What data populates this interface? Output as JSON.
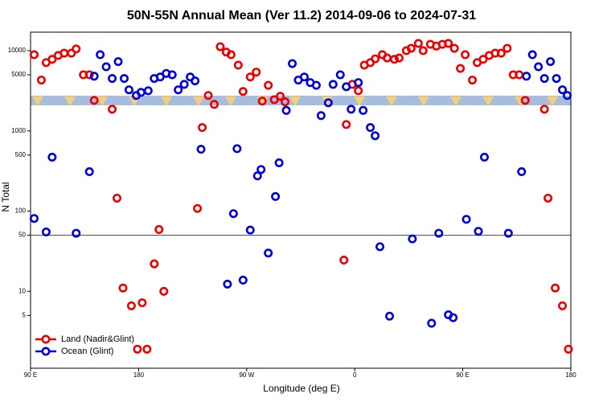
{
  "chart_data": {
    "type": "scatter",
    "title": "50N-55N Annual Mean (Ver 11.2)   2014-09-06 to 2024-07-31",
    "x_label": "Longitude (deg E)",
    "y_label": "N Total",
    "log_y": true,
    "hline": 50,
    "legend": "bottom-left",
    "xlim": [
      90,
      540
    ],
    "ylim": [
      1.1,
      17000
    ],
    "xticks": [
      {
        "value": 90,
        "label": "90 E"
      },
      180,
      {
        "value": 270,
        "label": "90 W"
      },
      {
        "value": 360,
        "label": "0"
      },
      {
        "value": 450,
        "label": "90 E"
      },
      {
        "value": 540,
        "label": "180"
      }
    ],
    "yticks": [
      5,
      10,
      50,
      100,
      500,
      1000,
      5000,
      10000
    ],
    "series": [
      {
        "name": "Land (Nadir&Glint)",
        "color": "#ee0000",
        "x": [
          93,
          99,
          103,
          108,
          113,
          118,
          124,
          128,
          134,
          139,
          143,
          158,
          162,
          167,
          174,
          183,
          179,
          187,
          193,
          197,
          201,
          229,
          233,
          238,
          243,
          248,
          253,
          257,
          263,
          267,
          273,
          278,
          283,
          288,
          293,
          298,
          302,
          351,
          353,
          358,
          363,
          368,
          373,
          377,
          383,
          387,
          393,
          397,
          403,
          407,
          413,
          417,
          423,
          428,
          433,
          438,
          443,
          448,
          452,
          458,
          462,
          467,
          472,
          477,
          482,
          487,
          492,
          497,
          502,
          518,
          521,
          527,
          533,
          538
        ],
        "values": [
          8900,
          4300,
          7100,
          7800,
          8700,
          9300,
          9300,
          10500,
          5000,
          5000,
          2400,
          1860,
          145,
          11,
          6.6,
          7.2,
          1.9,
          1.9,
          22,
          59,
          10,
          108,
          1100,
          2760,
          2140,
          11200,
          9600,
          8900,
          6600,
          3100,
          4700,
          5400,
          2350,
          3700,
          2450,
          2700,
          2300,
          24.5,
          1200,
          3800,
          3160,
          6600,
          7100,
          7900,
          8900,
          8100,
          7800,
          8100,
          10000,
          10700,
          12300,
          10000,
          12000,
          11400,
          12000,
          12300,
          10700,
          6000,
          8900,
          4300,
          7100,
          7800,
          8700,
          9300,
          9300,
          10700,
          5000,
          5000,
          2400,
          1860,
          145,
          11,
          6.6,
          1.9
        ]
      },
      {
        "name": "Ocean (Glint)",
        "color": "#0000dd",
        "x": [
          93,
          103,
          108,
          128,
          139,
          143,
          148,
          153,
          158,
          163,
          168,
          172,
          178,
          182,
          188,
          193,
          198,
          203,
          208,
          213,
          218,
          223,
          227,
          232,
          254,
          259,
          262,
          267,
          273,
          279,
          282,
          288,
          294,
          297,
          303,
          308,
          313,
          318,
          323,
          328,
          332,
          338,
          342,
          348,
          353,
          357,
          363,
          367,
          373,
          377,
          381,
          389,
          408,
          424,
          430,
          438,
          442,
          453,
          463,
          468,
          488,
          499,
          503,
          508,
          513,
          518,
          523,
          528,
          533,
          537
        ],
        "values": [
          81,
          55,
          470,
          53,
          310,
          4800,
          8900,
          6300,
          4500,
          7300,
          4500,
          3250,
          2760,
          3020,
          3160,
          4500,
          4700,
          5200,
          5000,
          3250,
          3800,
          4700,
          4200,
          590,
          12.3,
          93,
          600,
          13.8,
          58,
          275,
          330,
          30,
          152,
          400,
          1800,
          6900,
          4300,
          4700,
          4000,
          3700,
          1550,
          2240,
          3800,
          5000,
          3550,
          1860,
          4000,
          1800,
          1100,
          870,
          36,
          4.9,
          45,
          4.0,
          53,
          5.1,
          4.7,
          79,
          56,
          470,
          53,
          310,
          4800,
          8900,
          6300,
          4500,
          7300,
          4500,
          3250,
          2760
        ]
      }
    ]
  }
}
